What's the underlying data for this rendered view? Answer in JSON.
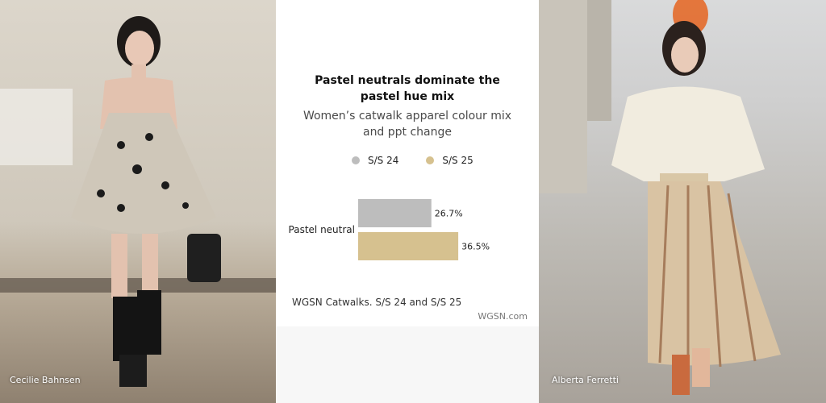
{
  "photos": {
    "left_caption": "Cecilie Bahnsen",
    "right_caption": "Alberta Ferretti"
  },
  "chart_data": {
    "type": "bar",
    "orientation": "horizontal",
    "title": "Pastel neutrals dominate the pastel hue mix",
    "subtitle": "Women’s catwalk apparel colour mix and ppt change",
    "categories": [
      "Pastel neutral"
    ],
    "series": [
      {
        "name": "S/S 24",
        "values": [
          26.7
        ],
        "labels": [
          "26.7%"
        ],
        "color": "#bdbdbd"
      },
      {
        "name": "S/S 25",
        "values": [
          36.5
        ],
        "labels": [
          "36.5%"
        ],
        "color": "#d6c18f"
      }
    ],
    "xlim": [
      0,
      50
    ],
    "grid": false,
    "legend_position": "top"
  },
  "footer": {
    "source": "WGSN Catwalks. S/S 24 and S/S 25",
    "brand": "WGSN.com"
  }
}
